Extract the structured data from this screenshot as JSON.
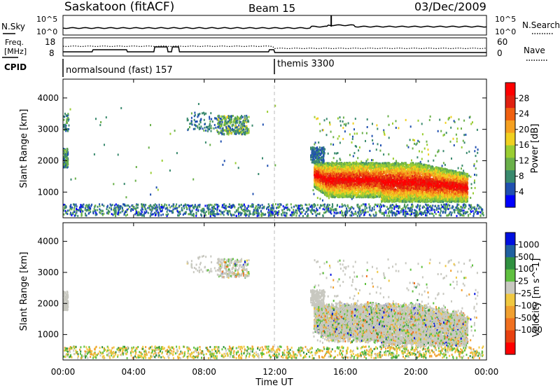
{
  "header": {
    "station": "Saskatoon (fitACF)",
    "beam": "Beam 15",
    "date": "03/Dec/2009"
  },
  "noise_panel": {
    "left_label": "N.Sky",
    "right_label": "N.Search",
    "left_ticks": [
      "10^5",
      "10^0"
    ],
    "right_ticks": [
      "10^5",
      "10^0"
    ]
  },
  "freq_panel": {
    "left_label_1": "Freq.",
    "left_label_2": "[MHz]",
    "right_label": "Nave",
    "left_ticks": [
      "18",
      "8"
    ],
    "right_ticks": [
      "60",
      "0"
    ]
  },
  "cpid": {
    "label": "CPID",
    "modes": [
      {
        "name": "normalsound (fast) 157",
        "start_hour": 0
      },
      {
        "name": "themis 3300",
        "start_hour": 12
      }
    ]
  },
  "colors": {
    "power_scale": [
      "#0000ff",
      "#2050b0",
      "#3a8a6e",
      "#6ab04a",
      "#9acd32",
      "#f0d020",
      "#f5a020",
      "#f06010",
      "#e02010",
      "#ff0000"
    ],
    "velocity_scale": [
      "#ff0000",
      "#e84010",
      "#f07020",
      "#f0a030",
      "#f0c840",
      "#c8c8c0",
      "#60c040",
      "#309040",
      "#2060a0",
      "#0010e0"
    ],
    "noise_line": "#000000",
    "dashed_midline": "#c0c0c0"
  },
  "chart_data": [
    {
      "type": "heatmap",
      "name": "power",
      "xlabel": "",
      "ylabel": "Slant Range [km]",
      "xlim": [
        0,
        24
      ],
      "ylim": [
        180,
        4600
      ],
      "yticks": [
        "1000",
        "2000",
        "3000",
        "4000"
      ],
      "grid": false,
      "colorbar": {
        "label": "Power [dB]",
        "ticks": [
          "28",
          "24",
          "20",
          "16",
          "12",
          "8",
          "4"
        ],
        "range": [
          0,
          32
        ]
      },
      "regions": [
        {
          "x": [
            0,
            24
          ],
          "y": [
            200,
            600
          ],
          "value": 6,
          "kind": "ground-scatter-strip"
        },
        {
          "x": [
            0,
            0.25
          ],
          "y": [
            1800,
            2300
          ],
          "value": 10
        },
        {
          "x": [
            9.0,
            10.5
          ],
          "y": [
            2800,
            3400
          ],
          "value": 12
        },
        {
          "x": [
            14.0,
            23.0
          ],
          "y": [
            500,
            3300
          ],
          "value": 8,
          "kind": "sparse-echoes"
        },
        {
          "x": [
            14.2,
            22.8
          ],
          "y": [
            800,
            1900
          ],
          "value": 25,
          "kind": "main-echo-band"
        }
      ]
    },
    {
      "type": "heatmap",
      "name": "velocity",
      "xlabel": "Time UT",
      "ylabel": "Slant Range [km]",
      "xlim": [
        0,
        24
      ],
      "ylim": [
        180,
        4600
      ],
      "xticks": [
        "00:00",
        "04:00",
        "08:00",
        "12:00",
        "16:00",
        "20:00",
        "00:00"
      ],
      "yticks": [
        "1000",
        "2000",
        "3000",
        "4000"
      ],
      "grid": false,
      "colorbar": {
        "label": "Velocity [m s^-1]",
        "ticks": [
          "1000",
          "500",
          "100",
          "25",
          "-25",
          "-100",
          "-500",
          "-1000"
        ]
      },
      "regions": [
        {
          "x": [
            0,
            24
          ],
          "y": [
            200,
            600
          ],
          "value": 0,
          "kind": "ground-scatter-strip"
        },
        {
          "x": [
            9.0,
            10.5
          ],
          "y": [
            2800,
            3400
          ],
          "value": 0
        },
        {
          "x": [
            14.0,
            23.0
          ],
          "y": [
            600,
            2000
          ],
          "value": 0,
          "kind": "main-echo-band"
        }
      ]
    }
  ]
}
